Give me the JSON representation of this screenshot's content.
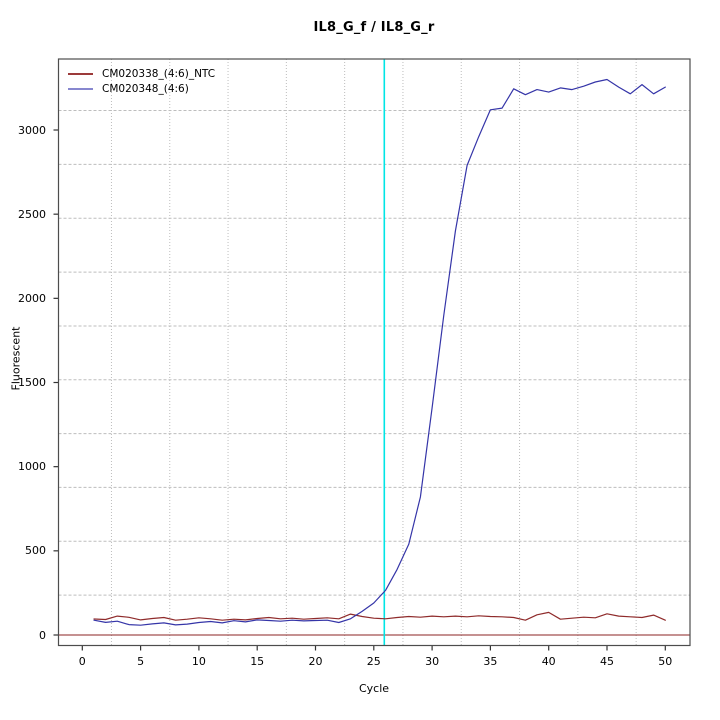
{
  "chart_data": {
    "type": "line",
    "title": "IL8_G_f / IL8_G_r",
    "xlabel": "Cycle",
    "ylabel": "Fluorescent",
    "x_ticks": [
      0,
      5,
      10,
      15,
      20,
      25,
      30,
      35,
      40,
      45,
      50
    ],
    "y_ticks": [
      0,
      500,
      1000,
      1500,
      2000,
      2500,
      3000
    ],
    "xlim": [
      -2.1,
      52.1
    ],
    "ylim": [
      -65,
      3420
    ],
    "grid": {
      "on": true,
      "vertical_cycles": [
        2.5,
        7.5,
        12.5,
        17.5,
        22.5,
        27.5,
        32.5,
        37.5,
        42.5,
        47.5
      ],
      "horizontal_values": [
        237,
        557,
        877,
        1196,
        1516,
        1836,
        2156,
        2476,
        2796,
        3116
      ],
      "color": "#bdbdbd"
    },
    "threshold_line": {
      "cycle": 25.9,
      "color": "#00e5e5"
    },
    "zero_line": {
      "value": 0,
      "color": "#8b2323"
    },
    "legend_position": "top-left",
    "x": [
      1,
      2,
      3,
      4,
      5,
      6,
      7,
      8,
      9,
      10,
      11,
      12,
      13,
      14,
      15,
      16,
      17,
      18,
      19,
      20,
      21,
      22,
      23,
      24,
      25,
      26,
      27,
      28,
      29,
      30,
      31,
      32,
      33,
      34,
      35,
      36,
      37,
      38,
      39,
      40,
      41,
      42,
      43,
      44,
      45,
      46,
      47,
      48,
      49,
      50
    ],
    "series": [
      {
        "name": "CM020338_(4:6)_NTC",
        "color": "#8f2b2b",
        "legend_color": "#9c3a3a",
        "values": [
          95,
          92,
          112,
          105,
          90,
          98,
          104,
          88,
          94,
          102,
          96,
          88,
          94,
          90,
          98,
          104,
          96,
          100,
          94,
          98,
          102,
          96,
          124,
          110,
          100,
          96,
          104,
          110,
          106,
          112,
          108,
          112,
          108,
          114,
          110,
          108,
          104,
          88,
          120,
          134,
          94,
          100,
          106,
          102,
          126,
          112,
          108,
          104,
          118,
          88
        ]
      },
      {
        "name": "CM020348_(4:6)",
        "color": "#3535a8",
        "legend_color": "#8787cf",
        "values": [
          88,
          75,
          82,
          62,
          58,
          66,
          72,
          60,
          65,
          74,
          80,
          72,
          85,
          78,
          90,
          86,
          82,
          88,
          84,
          86,
          88,
          74,
          96,
          140,
          190,
          265,
          390,
          540,
          820,
          1350,
          1900,
          2400,
          2790,
          2960,
          3120,
          3130,
          3245,
          3210,
          3240,
          3225,
          3250,
          3240,
          3260,
          3285,
          3300,
          3255,
          3215,
          3270,
          3215,
          3255
        ]
      }
    ],
    "box_color": "#4d4d4d",
    "tick_color": "#333333"
  }
}
